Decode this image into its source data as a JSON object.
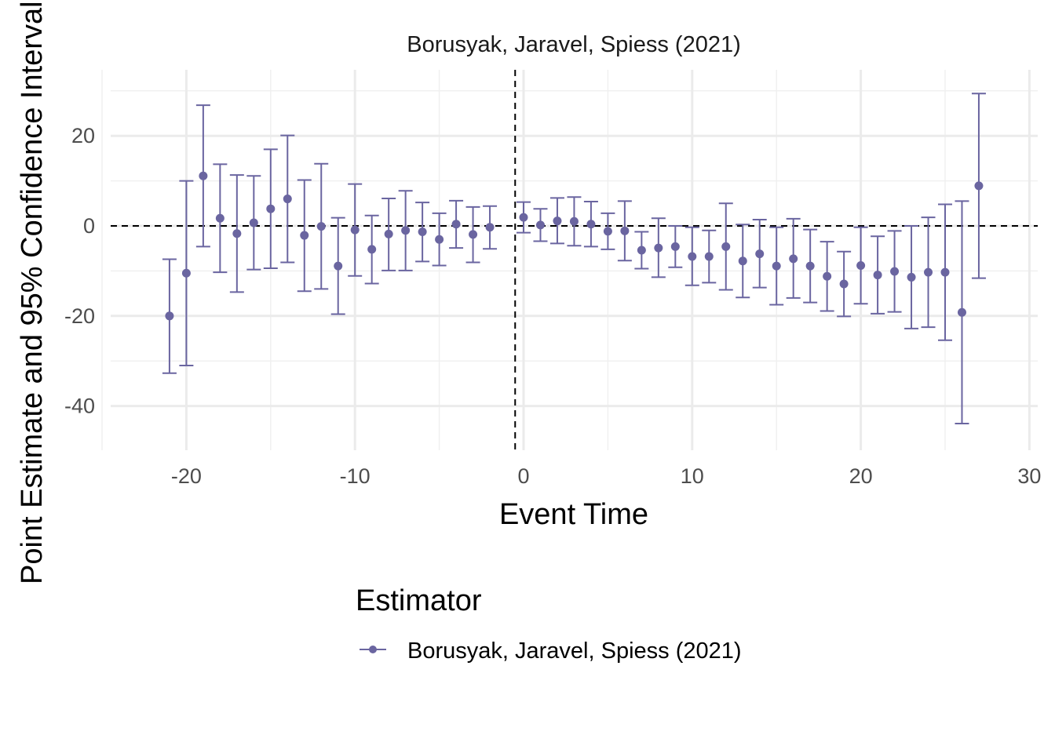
{
  "chart_data": {
    "type": "scatter",
    "title": "Borusyak, Jaravel, Spiess (2021)",
    "xlabel": "Event Time",
    "ylabel": "Point Estimate and 95% Confidence Interval",
    "xlim": [
      -25.5,
      30.5
    ],
    "ylim": [
      -49,
      35
    ],
    "x_ticks": [
      -20,
      -10,
      0,
      10,
      20,
      30
    ],
    "x_tick_labels": [
      "-20",
      "-10",
      "0",
      "10",
      "20",
      "30"
    ],
    "y_ticks": [
      -40,
      -20,
      0,
      20
    ],
    "y_tick_labels": [
      "-40",
      "-20",
      "0",
      "20"
    ],
    "grid": true,
    "reference_lines": {
      "horizontal_y": 0,
      "vertical_x": -0.5,
      "style": "dashed"
    },
    "legend": {
      "title": "Estimator",
      "position": "bottom"
    },
    "series": [
      {
        "name": "Borusyak, Jaravel, Spiess (2021)",
        "color": "#6a65a0",
        "points": [
          {
            "x": -21,
            "y": -20.0,
            "lo": -32.7,
            "hi": -7.4
          },
          {
            "x": -20,
            "y": -10.5,
            "lo": -31.0,
            "hi": 10.0
          },
          {
            "x": -19,
            "y": 11.1,
            "lo": -4.6,
            "hi": 26.8
          },
          {
            "x": -18,
            "y": 1.7,
            "lo": -10.3,
            "hi": 13.7
          },
          {
            "x": -17,
            "y": -1.7,
            "lo": -14.7,
            "hi": 11.3
          },
          {
            "x": -16,
            "y": 0.7,
            "lo": -9.7,
            "hi": 11.1
          },
          {
            "x": -15,
            "y": 3.8,
            "lo": -9.4,
            "hi": 17.0
          },
          {
            "x": -14,
            "y": 6.0,
            "lo": -8.1,
            "hi": 20.1
          },
          {
            "x": -13,
            "y": -2.1,
            "lo": -14.5,
            "hi": 10.2
          },
          {
            "x": -12,
            "y": -0.1,
            "lo": -14.0,
            "hi": 13.8
          },
          {
            "x": -11,
            "y": -8.9,
            "lo": -19.6,
            "hi": 1.8
          },
          {
            "x": -10,
            "y": -0.9,
            "lo": -11.1,
            "hi": 9.3
          },
          {
            "x": -9,
            "y": -5.2,
            "lo": -12.8,
            "hi": 2.3
          },
          {
            "x": -8,
            "y": -1.8,
            "lo": -9.9,
            "hi": 6.1
          },
          {
            "x": -7,
            "y": -1.0,
            "lo": -9.9,
            "hi": 7.8
          },
          {
            "x": -6,
            "y": -1.3,
            "lo": -7.9,
            "hi": 5.2
          },
          {
            "x": -5,
            "y": -3.0,
            "lo": -8.8,
            "hi": 2.8
          },
          {
            "x": -4,
            "y": 0.4,
            "lo": -4.9,
            "hi": 5.6
          },
          {
            "x": -3,
            "y": -1.9,
            "lo": -8.1,
            "hi": 4.2
          },
          {
            "x": -2,
            "y": -0.3,
            "lo": -5.1,
            "hi": 4.4
          },
          {
            "x": 0,
            "y": 1.9,
            "lo": -1.5,
            "hi": 5.3
          },
          {
            "x": 1,
            "y": 0.2,
            "lo": -3.4,
            "hi": 3.8
          },
          {
            "x": 2,
            "y": 1.1,
            "lo": -3.9,
            "hi": 6.2
          },
          {
            "x": 3,
            "y": 1.0,
            "lo": -4.4,
            "hi": 6.4
          },
          {
            "x": 4,
            "y": 0.4,
            "lo": -4.6,
            "hi": 5.4
          },
          {
            "x": 5,
            "y": -1.2,
            "lo": -5.2,
            "hi": 2.8
          },
          {
            "x": 6,
            "y": -1.1,
            "lo": -7.7,
            "hi": 5.5
          },
          {
            "x": 7,
            "y": -5.4,
            "lo": -9.5,
            "hi": -1.3
          },
          {
            "x": 8,
            "y": -4.9,
            "lo": -11.4,
            "hi": 1.7
          },
          {
            "x": 9,
            "y": -4.6,
            "lo": -9.2,
            "hi": 0.0
          },
          {
            "x": 10,
            "y": -6.8,
            "lo": -13.2,
            "hi": -0.3
          },
          {
            "x": 11,
            "y": -6.8,
            "lo": -12.6,
            "hi": -1.0
          },
          {
            "x": 12,
            "y": -4.6,
            "lo": -14.2,
            "hi": 5.0
          },
          {
            "x": 13,
            "y": -7.8,
            "lo": -15.9,
            "hi": 0.3
          },
          {
            "x": 14,
            "y": -6.2,
            "lo": -13.7,
            "hi": 1.4
          },
          {
            "x": 15,
            "y": -8.9,
            "lo": -17.5,
            "hi": -0.3
          },
          {
            "x": 16,
            "y": -7.3,
            "lo": -16.0,
            "hi": 1.6
          },
          {
            "x": 17,
            "y": -8.9,
            "lo": -17.0,
            "hi": -0.8
          },
          {
            "x": 18,
            "y": -11.2,
            "lo": -18.9,
            "hi": -3.5
          },
          {
            "x": 19,
            "y": -12.9,
            "lo": -20.1,
            "hi": -5.7
          },
          {
            "x": 20,
            "y": -8.8,
            "lo": -17.3,
            "hi": -0.3
          },
          {
            "x": 21,
            "y": -10.9,
            "lo": -19.5,
            "hi": -2.3
          },
          {
            "x": 22,
            "y": -10.1,
            "lo": -19.1,
            "hi": -1.1
          },
          {
            "x": 23,
            "y": -11.4,
            "lo": -22.8,
            "hi": 0.0
          },
          {
            "x": 24,
            "y": -10.3,
            "lo": -22.5,
            "hi": 1.9
          },
          {
            "x": 25,
            "y": -10.3,
            "lo": -25.4,
            "hi": 4.8
          },
          {
            "x": 26,
            "y": -19.2,
            "lo": -43.9,
            "hi": 5.5
          },
          {
            "x": 27,
            "y": 8.9,
            "lo": -11.6,
            "hi": 29.4
          }
        ]
      }
    ]
  }
}
